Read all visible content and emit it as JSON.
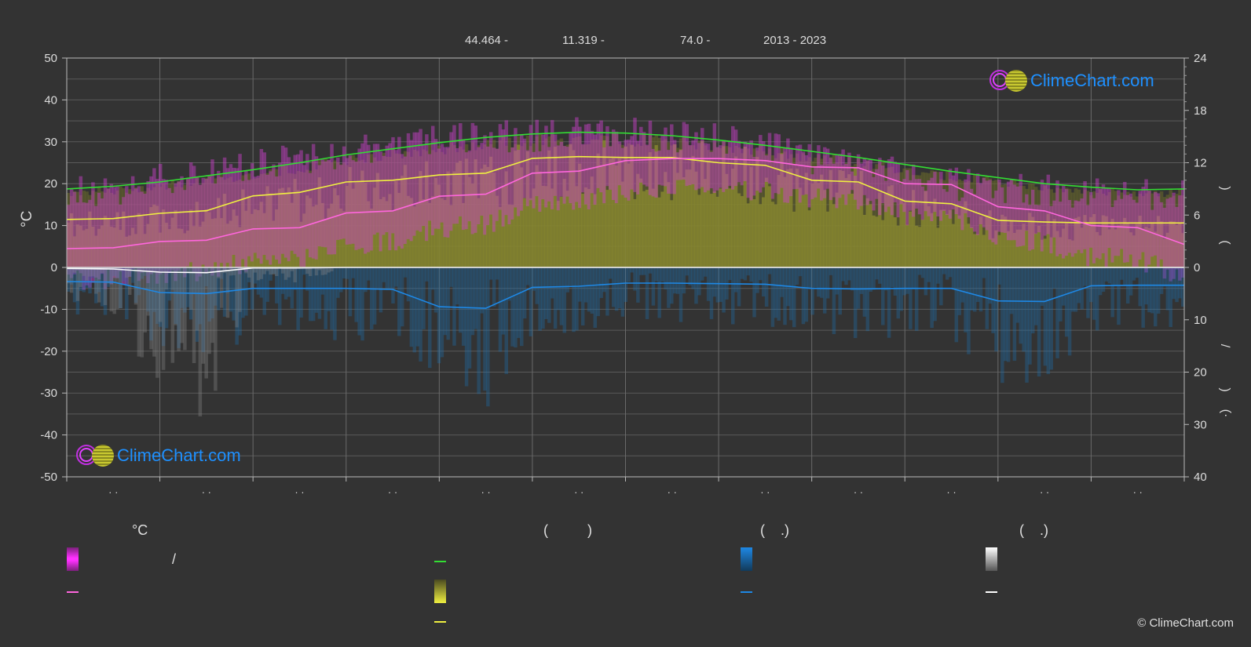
{
  "header": {
    "lat": "44.464 -",
    "lon": "11.319 -",
    "elev": "74.0 -",
    "years": "2013 - 2023"
  },
  "axes": {
    "left_unit": "°C",
    "left_ticks": [
      "50",
      "40",
      "30",
      "20",
      "10",
      "0",
      "-10",
      "-20",
      "-30",
      "-40",
      "-50"
    ],
    "right_top_ticks": [
      "24",
      "18",
      "12",
      "6",
      "0"
    ],
    "right_bottom_ticks": [
      "10",
      "20",
      "30",
      "40"
    ],
    "right_side_marks": [
      ")",
      "(",
      "/",
      ")",
      "(·"
    ],
    "month_ticks": [
      "· ·",
      "· ·",
      "· ·",
      "· ·",
      "· ·",
      "· ·",
      "· ·",
      "· ·",
      "· ·",
      "· ·",
      "· ·",
      "· ·"
    ]
  },
  "logo": {
    "text": "ClimeChart.com"
  },
  "legend": {
    "col1_head": "°C",
    "col1_slash": "/",
    "col2_head": "(          )",
    "col3_head": "(    .)",
    "col4_head": "(    .)"
  },
  "copyright": "© ClimeChart.com",
  "colors": {
    "background": "#333333",
    "daylight": "#33dd33",
    "sunshine": "#f0f040",
    "temp_mean": "#ff66dd",
    "rain": "#1e88e5",
    "snow": "#ffffff"
  },
  "chart_data": {
    "type": "area",
    "x_points": [
      "Jan 1",
      "Jan 15",
      "Feb 1",
      "Feb 15",
      "Mar 1",
      "Mar 15",
      "Apr 1",
      "Apr 15",
      "May 1",
      "May 15",
      "Jun 1",
      "Jun 15",
      "Jul 1",
      "Jul 15",
      "Aug 1",
      "Aug 15",
      "Sep 1",
      "Sep 15",
      "Oct 1",
      "Oct 15",
      "Nov 1",
      "Nov 15",
      "Dec 1",
      "Dec 15",
      "Dec 31"
    ],
    "ylim_left": [
      -50,
      50
    ],
    "ylim_right_top_hours": [
      0,
      24
    ],
    "ylim_right_bottom_mm": [
      0,
      40
    ],
    "series": [
      {
        "name": "daylight_hours",
        "unit": "h",
        "values": [
          9.0,
          9.3,
          9.8,
          10.5,
          11.2,
          12.0,
          12.9,
          13.6,
          14.3,
          14.9,
          15.3,
          15.5,
          15.4,
          15.1,
          14.6,
          14.0,
          13.3,
          12.6,
          11.8,
          11.0,
          10.3,
          9.6,
          9.2,
          8.9,
          9.0
        ]
      },
      {
        "name": "sunshine_hours",
        "unit": "h",
        "values": [
          5.5,
          5.6,
          6.2,
          6.5,
          8.2,
          8.6,
          9.8,
          10.0,
          10.6,
          10.8,
          12.5,
          12.7,
          12.6,
          12.6,
          12.0,
          11.7,
          10.0,
          9.8,
          7.6,
          7.3,
          5.4,
          5.2,
          5.1,
          5.1,
          5.1
        ]
      },
      {
        "name": "temp_mean",
        "unit": "°C",
        "values": [
          4.5,
          4.7,
          6.2,
          6.5,
          9.2,
          9.5,
          13.0,
          13.5,
          17.0,
          17.5,
          22.5,
          23.0,
          25.5,
          26.0,
          26.0,
          25.5,
          24.0,
          23.8,
          20.0,
          19.8,
          14.5,
          13.5,
          10.0,
          9.5,
          5.5
        ]
      },
      {
        "name": "temp_max_range",
        "unit": "°C",
        "values": [
          16,
          16.5,
          19,
          21,
          23,
          24,
          25.5,
          26.5,
          28.5,
          29,
          29.5,
          30,
          30,
          29.5,
          28.5,
          27,
          24,
          23,
          20,
          18,
          17,
          16.5,
          16,
          15.5,
          15.5
        ]
      },
      {
        "name": "rain_daily_mm",
        "unit": "mm",
        "values": [
          2.7,
          2.8,
          4.8,
          5.0,
          4.0,
          4.0,
          4.0,
          4.2,
          7.5,
          7.8,
          3.8,
          3.6,
          3.0,
          3.0,
          3.1,
          3.2,
          4.0,
          4.1,
          4.0,
          4.0,
          6.4,
          6.5,
          3.5,
          3.4,
          3.4
        ]
      },
      {
        "name": "snow_daily_mm",
        "unit": "mm",
        "values": [
          0.2,
          0.3,
          0.9,
          1.0,
          0.1,
          0.1,
          0,
          0,
          0,
          0,
          0,
          0,
          0,
          0,
          0,
          0,
          0,
          0,
          0,
          0,
          0,
          0,
          0,
          0,
          0
        ]
      }
    ]
  }
}
